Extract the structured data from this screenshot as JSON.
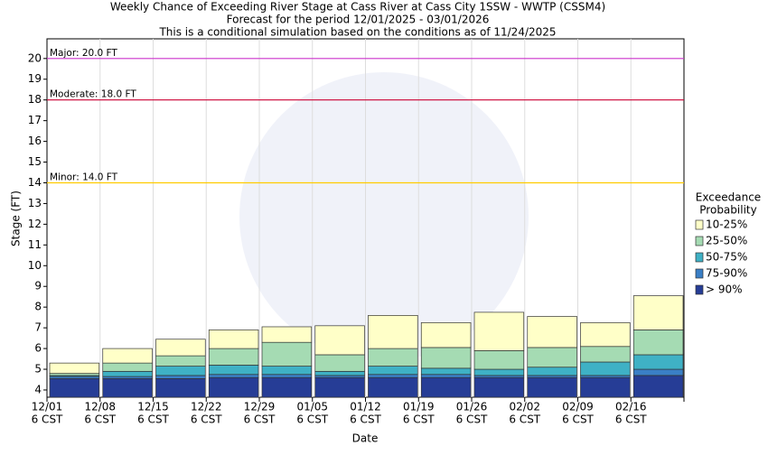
{
  "chart_data": {
    "type": "exceedance",
    "title": [
      "Weekly Chance of Exceeding River Stage at Cass River at Cass City 1SSW - WWTP (CSSM4)",
      "Forecast for the period 12/01/2025 - 03/01/2026",
      "This is a conditional simulation based on the conditions as of 11/24/2025"
    ],
    "x_label": "Date",
    "y_label": "Stage (FT)",
    "categories": [
      "12/01",
      "12/08",
      "12/15",
      "12/22",
      "12/29",
      "01/05",
      "01/12",
      "01/19",
      "01/26",
      "02/02",
      "02/09",
      "02/16"
    ],
    "x_sublabel": "6 CST",
    "ylim": [
      3.65,
      20.95
    ],
    "yticks": [
      4,
      5,
      6,
      7,
      8,
      9,
      10,
      11,
      12,
      13,
      14,
      15,
      16,
      17,
      18,
      19,
      20
    ],
    "grid": true,
    "legend_title": [
      "Exceedance",
      "Probability"
    ],
    "series": [
      {
        "name": "> 90%",
        "color": "#263d96",
        "values": [
          4.55,
          4.55,
          4.55,
          4.6,
          4.6,
          4.6,
          4.6,
          4.6,
          4.6,
          4.6,
          4.6,
          4.7
        ]
      },
      {
        "name": "75-90%",
        "color": "#3a7fc6",
        "values": [
          4.65,
          4.65,
          4.7,
          4.75,
          4.75,
          4.7,
          4.75,
          4.75,
          4.7,
          4.7,
          4.7,
          5.0
        ]
      },
      {
        "name": "50-75%",
        "color": "#3fb1c5",
        "values": [
          4.7,
          4.9,
          5.15,
          5.2,
          5.15,
          4.9,
          5.15,
          5.05,
          5.0,
          5.1,
          5.35,
          5.7
        ]
      },
      {
        "name": "25-50%",
        "color": "#a5dbb3",
        "values": [
          4.8,
          5.3,
          5.65,
          6.0,
          6.3,
          5.7,
          6.0,
          6.05,
          5.9,
          6.05,
          6.1,
          6.9
        ]
      },
      {
        "name": "10-25%",
        "color": "#ffffc8",
        "values": [
          5.3,
          6.0,
          6.45,
          6.9,
          7.05,
          7.1,
          7.6,
          7.25,
          7.75,
          7.55,
          7.25,
          8.55
        ]
      }
    ],
    "thresholds": [
      {
        "label": "Major: 20.0 FT",
        "value": 20,
        "color": "#cc33cc"
      },
      {
        "label": "Moderate: 18.0 FT",
        "value": 18,
        "color": "#cc0033"
      },
      {
        "label": "Minor: 14.0 FT",
        "value": 14,
        "color": "#ffcc00"
      }
    ]
  }
}
